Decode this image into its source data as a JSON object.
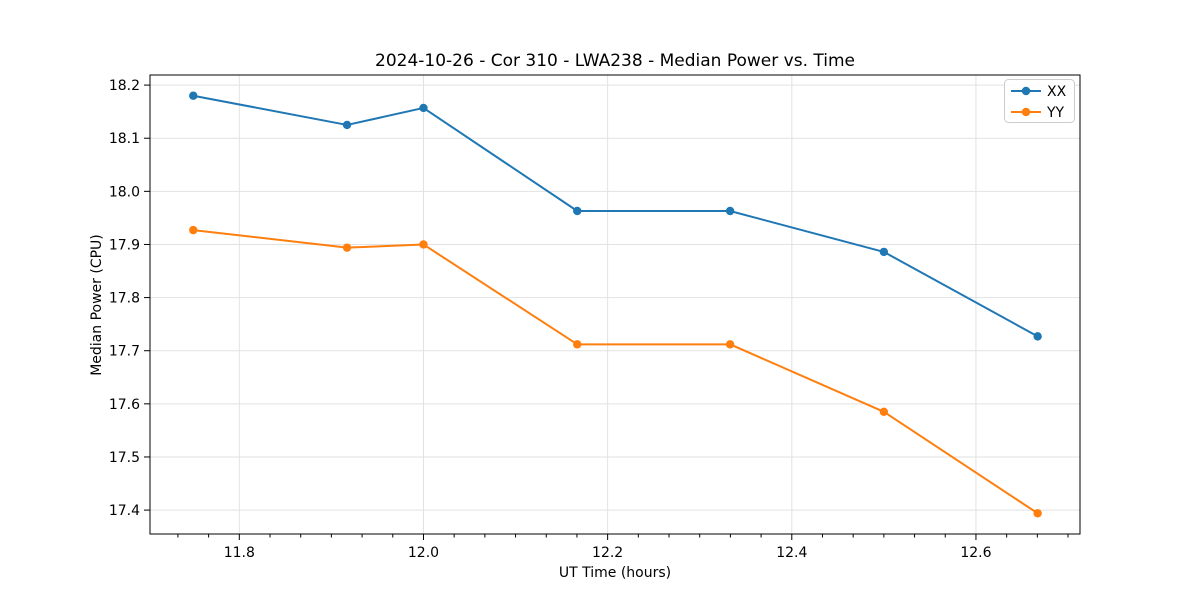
{
  "chart_data": {
    "type": "line",
    "title": "2024-10-26 - Cor 310 - LWA238 - Median Power vs. Time",
    "xlabel": "UT Time (hours)",
    "ylabel": "Median Power (CPU)",
    "x": [
      11.75,
      11.917,
      12.0,
      12.167,
      12.333,
      12.5,
      12.667
    ],
    "series": [
      {
        "name": "XX",
        "color": "#1f77b4",
        "values": [
          18.18,
          18.125,
          18.157,
          17.963,
          17.963,
          17.886,
          17.727
        ]
      },
      {
        "name": "YY",
        "color": "#ff7f0e",
        "values": [
          17.927,
          17.894,
          17.9,
          17.712,
          17.712,
          17.585,
          17.394
        ]
      }
    ],
    "xlim": [
      11.703,
      12.713
    ],
    "ylim": [
      17.355,
      18.219
    ],
    "xticks": [
      11.8,
      12.0,
      12.2,
      12.4,
      12.6
    ],
    "yticks": [
      17.4,
      17.5,
      17.6,
      17.7,
      17.8,
      17.9,
      18.0,
      18.1,
      18.2
    ],
    "x_minor_step_divisions": 6,
    "grid": true,
    "grid_color": "#e2e2e2",
    "spine_color": "#000000",
    "legend_position": "upper right",
    "legend_border_color": "#cccccc",
    "marker": "circle",
    "line_width": 2,
    "marker_radius": 4.2
  }
}
